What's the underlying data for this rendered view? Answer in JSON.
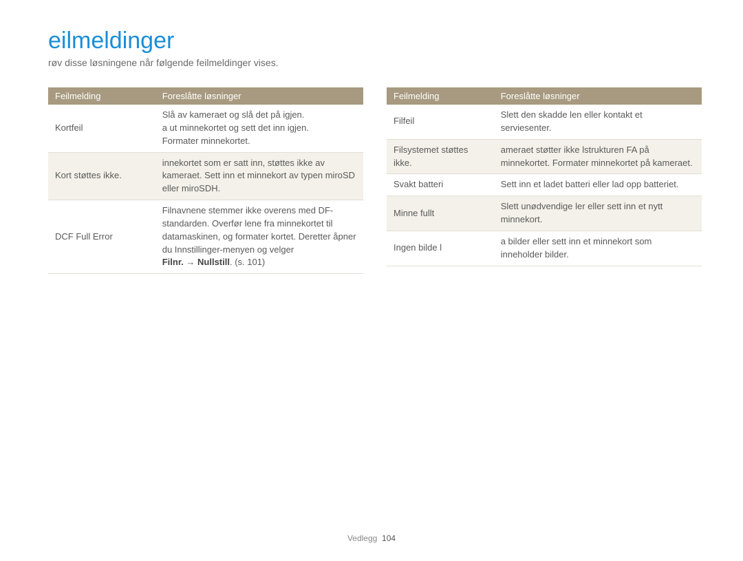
{
  "heading": "eilmeldinger",
  "subheading": "røv disse løsningene når følgende feilmeldinger vises.",
  "table_header": {
    "col1": "Feilmelding",
    "col2": "Foreslåtte løsninger"
  },
  "left_rows": [
    {
      "msg": "Kortfeil",
      "sol": "Slå av kameraet og slå det på igjen.\na ut minnekortet og sett det inn igjen.\nFormater minnekortet."
    },
    {
      "msg": "Kort støttes ikke.",
      "sol": "innekortet som er satt inn, støttes ikke av kameraet. Sett inn et minnekort av typen miroSD eller miroSDH."
    },
    {
      "msg": "DCF Full Error",
      "sol_pre": "Filnavnene stemmer ikke overens med DF-standarden. Overfør lene fra minnekortet til datamaskinen, og formater kortet. Deretter åpner du Innstillinger-menyen og velger",
      "sol_bold_a": "Filnr.",
      "sol_arrow": " → ",
      "sol_bold_b": "Nullstill",
      "sol_after": ". (s. 101)"
    }
  ],
  "right_rows": [
    {
      "msg": "Filfeil",
      "sol": "Slett den skadde len eller kontakt et serviesenter."
    },
    {
      "msg": "Filsystemet støttes ikke.",
      "sol": "ameraet støtter ikke lstrukturen FA på minnekortet. Formater minnekortet på kameraet."
    },
    {
      "msg": "Svakt batteri",
      "sol": "Sett inn et ladet batteri eller lad opp batteriet."
    },
    {
      "msg": "Minne fullt",
      "sol": "Slett unødvendige ler eller sett inn et nytt minnekort."
    },
    {
      "msg": "Ingen bilde l",
      "sol": "a bilder eller sett inn et minnekort som inneholder bilder."
    }
  ],
  "footer_label": "Vedlegg",
  "footer_page": "104",
  "colors": {
    "heading": "#1a8ed8",
    "header_bg": "#a79a80",
    "row_alt_bg": "#f4f1ea",
    "row_border": "#e2ded3",
    "text": "#5a5a5a"
  }
}
